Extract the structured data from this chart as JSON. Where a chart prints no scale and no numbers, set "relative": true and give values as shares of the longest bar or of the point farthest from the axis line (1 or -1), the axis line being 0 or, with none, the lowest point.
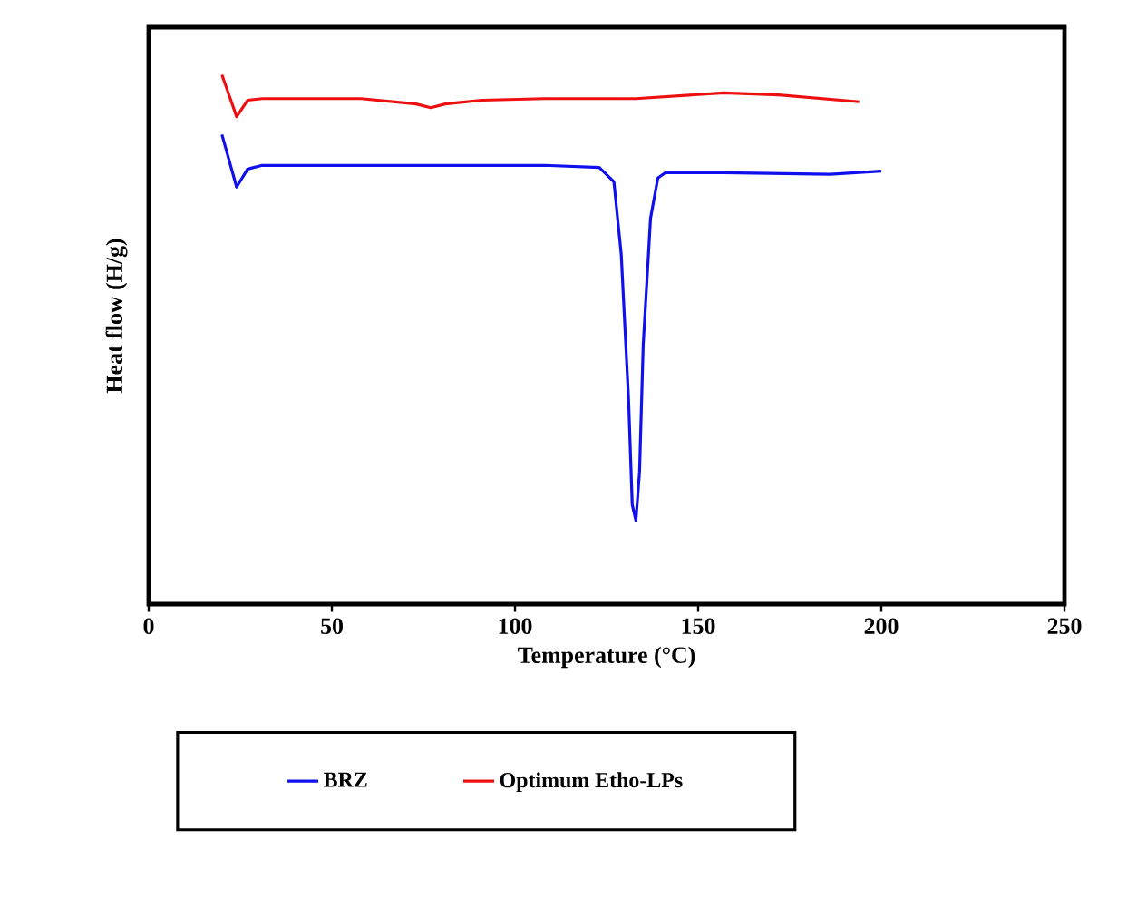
{
  "chart_data": {
    "type": "line",
    "relative": true,
    "xlabel": "Temperature  (°C)",
    "ylabel": "Heat flow (H/g)",
    "xlim": [
      0,
      250
    ],
    "xticks": [
      0,
      50,
      100,
      150,
      200,
      250
    ],
    "tick_labels": "x",
    "legend": "bottom",
    "line_style": "solid",
    "series": [
      {
        "name": "BRZ",
        "color": "#1010ee",
        "x": [
          20,
          24,
          27,
          31,
          58,
          108,
          123,
          127,
          129,
          131,
          132,
          133,
          134,
          135,
          137,
          139,
          141,
          157,
          186,
          200
        ],
        "values": [
          0.887,
          0.788,
          0.822,
          0.829,
          0.829,
          0.829,
          0.825,
          0.798,
          0.661,
          0.387,
          0.188,
          0.158,
          0.25,
          0.49,
          0.729,
          0.805,
          0.815,
          0.815,
          0.812,
          0.818
        ]
      },
      {
        "name": "Optimum Etho-LPs",
        "color": "#ee1010",
        "x": [
          20,
          24,
          27,
          31,
          58,
          73,
          77,
          81,
          91,
          108,
          133,
          157,
          172,
          194
        ],
        "values": [
          1.0,
          0.921,
          0.952,
          0.955,
          0.955,
          0.945,
          0.938,
          0.945,
          0.952,
          0.955,
          0.955,
          0.966,
          0.962,
          0.949
        ]
      }
    ]
  }
}
